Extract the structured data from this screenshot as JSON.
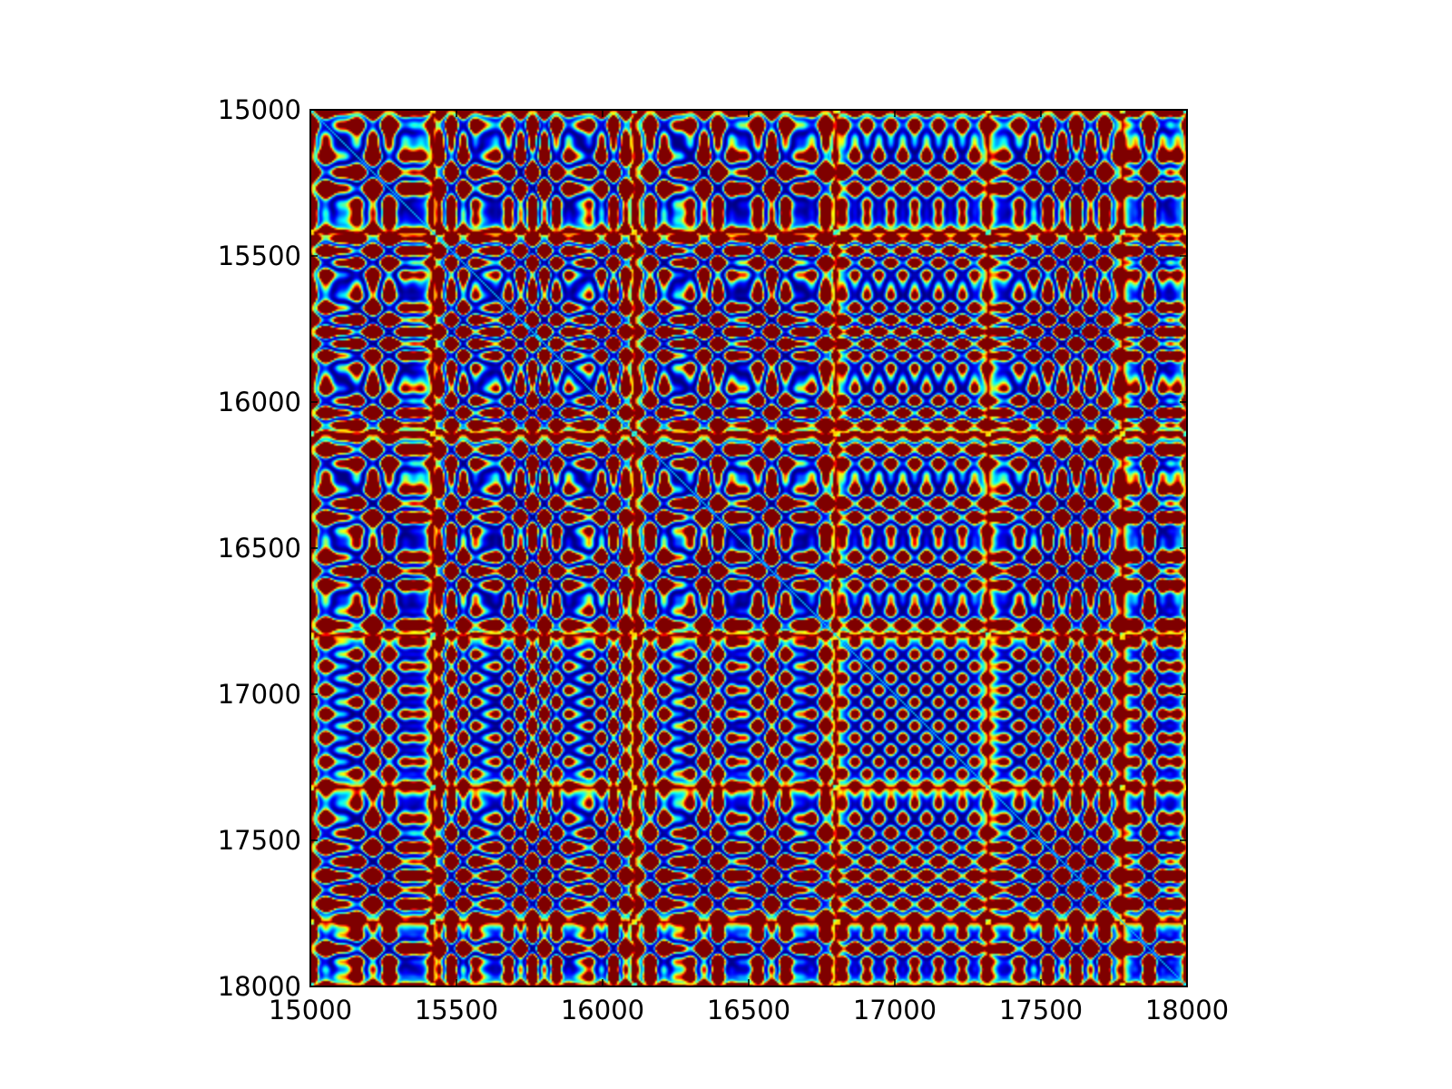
{
  "chart_data": {
    "type": "heatmap",
    "title": "",
    "xlabel": "",
    "ylabel": "",
    "xlim": [
      15000,
      18000
    ],
    "ylim": [
      18000,
      15000
    ],
    "y_axis_inverted": true,
    "x_ticks": [
      15000,
      15500,
      16000,
      16500,
      17000,
      17500,
      18000
    ],
    "y_ticks": [
      15000,
      15500,
      16000,
      16500,
      17000,
      17500,
      18000
    ],
    "x_tick_labels": [
      "15000",
      "15500",
      "16000",
      "16500",
      "17000",
      "17500",
      "18000"
    ],
    "y_tick_labels": [
      "15000",
      "15500",
      "16000",
      "16500",
      "17000",
      "17500",
      "18000"
    ],
    "colormap": "jet",
    "symmetric": true,
    "saturated_color": "#7f0000",
    "grid": false,
    "legend": "none",
    "block_boundaries": [
      15000,
      15420,
      16110,
      16800,
      17320,
      17780,
      18000
    ],
    "boundary_line_values": [
      15420,
      15455,
      16110,
      16145,
      16800,
      16835,
      17320,
      17355,
      17720,
      17780
    ]
  }
}
